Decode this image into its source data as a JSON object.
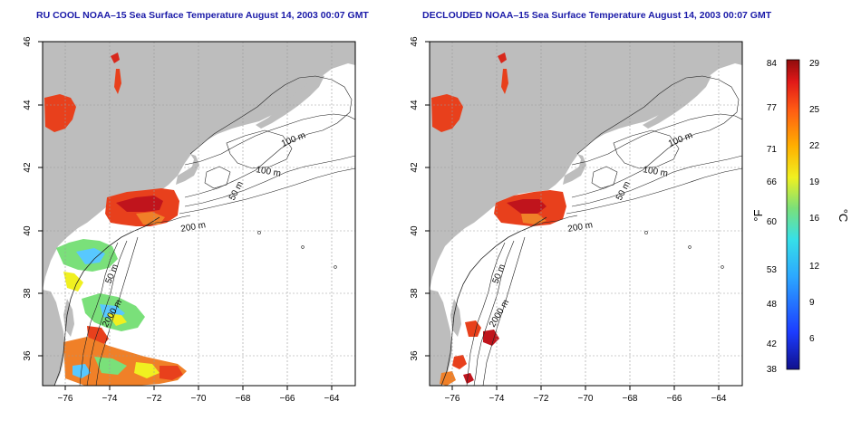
{
  "panels": [
    {
      "id": "left",
      "title": "RU COOL NOAA–15 Sea Surface Temperature August 14, 2003 00:07 GMT"
    },
    {
      "id": "right",
      "title": "DECLOUDED NOAA–15 Sea Surface Temperature August 14, 2003 00:07 GMT"
    }
  ],
  "axes": {
    "lon_ticks": [
      "−76",
      "−74",
      "−72",
      "−70",
      "−68",
      "−66",
      "−64"
    ],
    "lat_ticks": [
      "46",
      "44",
      "42",
      "40",
      "38",
      "36"
    ]
  },
  "contour_labels": {
    "m100a": "100 m",
    "m100b": "100 m",
    "m50a": "50 m",
    "m200": "200 m",
    "m50b": "50 m",
    "m2000": "2000 m"
  },
  "colorbar": {
    "fahrenheit_ticks": [
      "84",
      "77",
      "71",
      "66",
      "60",
      "53",
      "48",
      "42",
      "38"
    ],
    "celsius_ticks": [
      "29",
      "25",
      "22",
      "19",
      "16",
      "12",
      "9",
      "6"
    ],
    "unit_f": "°F",
    "unit_c": "°C",
    "range_f": [
      38,
      84
    ],
    "range_c": [
      3.3,
      29
    ]
  },
  "colors": {
    "land": "#bdbdbd",
    "title": "#1a1aa8",
    "warm": "#e8401c",
    "hot": "#c0141c",
    "cool": "#58c8ff"
  }
}
